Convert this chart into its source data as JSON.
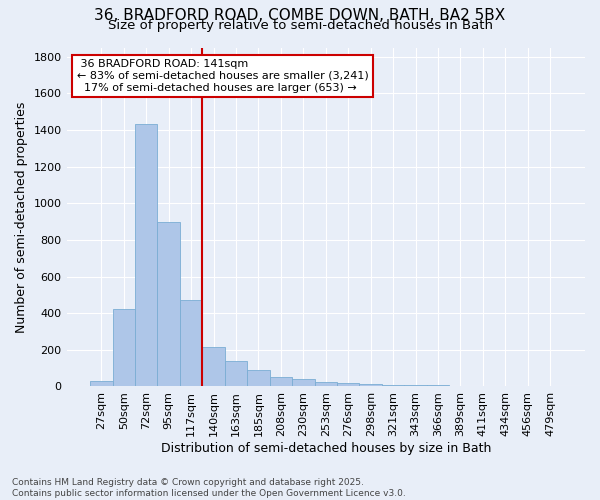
{
  "title_line1": "36, BRADFORD ROAD, COMBE DOWN, BATH, BA2 5BX",
  "title_line2": "Size of property relative to semi-detached houses in Bath",
  "xlabel": "Distribution of semi-detached houses by size in Bath",
  "ylabel": "Number of semi-detached properties",
  "footnote": "Contains HM Land Registry data © Crown copyright and database right 2025.\nContains public sector information licensed under the Open Government Licence v3.0.",
  "bar_labels": [
    "27sqm",
    "50sqm",
    "72sqm",
    "95sqm",
    "117sqm",
    "140sqm",
    "163sqm",
    "185sqm",
    "208sqm",
    "230sqm",
    "253sqm",
    "276sqm",
    "298sqm",
    "321sqm",
    "343sqm",
    "366sqm",
    "389sqm",
    "411sqm",
    "434sqm",
    "456sqm",
    "479sqm"
  ],
  "bar_values": [
    30,
    425,
    1430,
    900,
    470,
    215,
    140,
    90,
    50,
    40,
    25,
    20,
    15,
    10,
    8,
    6,
    5,
    4,
    3,
    2,
    1
  ],
  "bar_color": "#aec6e8",
  "bar_edge_color": "#7aadd4",
  "property_label": "36 BRADFORD ROAD: 141sqm",
  "pct_smaller": 83,
  "n_smaller": 3241,
  "pct_larger": 17,
  "n_larger": 653,
  "vline_color": "#cc0000",
  "annotation_box_color": "#cc0000",
  "vline_bar_index": 5,
  "ylim": [
    0,
    1850
  ],
  "yticks": [
    0,
    200,
    400,
    600,
    800,
    1000,
    1200,
    1400,
    1600,
    1800
  ],
  "background_color": "#e8eef8",
  "grid_color": "#ffffff",
  "title_fontsize": 11,
  "subtitle_fontsize": 9.5,
  "axis_label_fontsize": 9,
  "tick_fontsize": 8,
  "annotation_fontsize": 8,
  "footnote_fontsize": 6.5
}
